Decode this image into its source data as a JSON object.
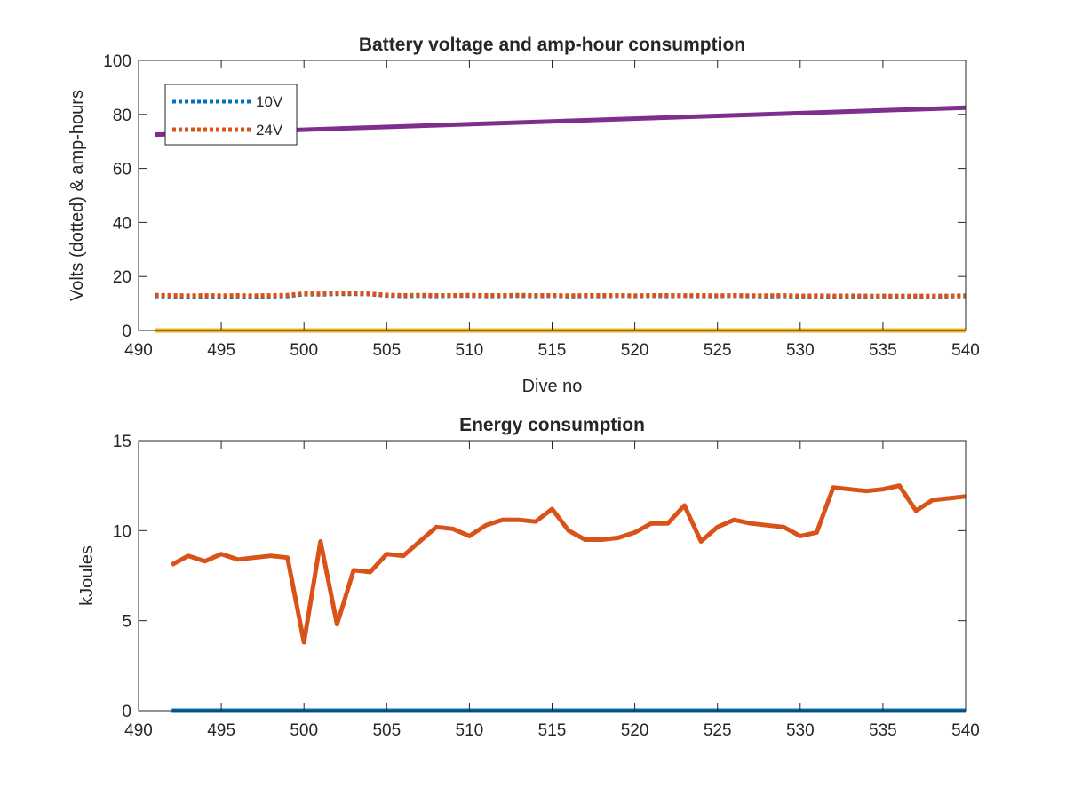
{
  "chart_data": [
    {
      "type": "line",
      "title": "Battery voltage and amp-hour consumption",
      "xlabel": "Dive no",
      "ylabel": "Volts (dotted) & amp-hours",
      "xlim": [
        490,
        540
      ],
      "ylim": [
        0,
        100
      ],
      "xticks": [
        "490",
        "495",
        "500",
        "505",
        "510",
        "515",
        "520",
        "525",
        "530",
        "535",
        "540"
      ],
      "yticks": [
        "0",
        "20",
        "40",
        "60",
        "80",
        "100"
      ],
      "legend_position": "top-left",
      "grid": false,
      "series": [
        {
          "name": "10V",
          "style": "dotted",
          "color": "#0072BD",
          "x": [
            491,
            492,
            493,
            494,
            495,
            496,
            497,
            498,
            499,
            500,
            501,
            502,
            503,
            504,
            505,
            506,
            507,
            508,
            509,
            510,
            511,
            512,
            513,
            514,
            515,
            516,
            517,
            518,
            519,
            520,
            521,
            522,
            523,
            524,
            525,
            526,
            527,
            528,
            529,
            530,
            531,
            532,
            533,
            534,
            535,
            536,
            537,
            538,
            539,
            540
          ],
          "values": [
            12.8,
            12.7,
            12.6,
            12.7,
            12.6,
            12.7,
            12.6,
            12.7,
            12.8,
            13.5,
            13.4,
            13.6,
            13.6,
            13.5,
            13.0,
            12.8,
            12.9,
            12.8,
            12.9,
            12.9,
            12.8,
            12.8,
            12.9,
            12.8,
            12.9,
            12.7,
            12.8,
            12.8,
            12.9,
            12.8,
            12.9,
            12.8,
            12.9,
            12.8,
            12.8,
            12.9,
            12.8,
            12.7,
            12.8,
            12.6,
            12.7,
            12.6,
            12.7,
            12.6,
            12.7,
            12.6,
            12.7,
            12.6,
            12.7,
            12.8
          ]
        },
        {
          "name": "24V",
          "style": "dotted",
          "color": "#D95319",
          "x": [
            491,
            492,
            493,
            494,
            495,
            496,
            497,
            498,
            499,
            500,
            501,
            502,
            503,
            504,
            505,
            506,
            507,
            508,
            509,
            510,
            511,
            512,
            513,
            514,
            515,
            516,
            517,
            518,
            519,
            520,
            521,
            522,
            523,
            524,
            525,
            526,
            527,
            528,
            529,
            530,
            531,
            532,
            533,
            534,
            535,
            536,
            537,
            538,
            539,
            540
          ],
          "values": [
            13.1,
            13.0,
            12.9,
            13.0,
            12.9,
            13.0,
            12.9,
            13.0,
            13.1,
            13.7,
            13.6,
            13.8,
            13.8,
            13.6,
            13.2,
            13.0,
            13.1,
            13.0,
            13.0,
            13.1,
            13.0,
            13.0,
            13.1,
            13.0,
            13.0,
            12.9,
            13.0,
            13.0,
            13.0,
            12.9,
            13.0,
            13.0,
            12.9,
            13.0,
            12.9,
            13.0,
            12.9,
            12.9,
            13.0,
            12.8,
            12.9,
            12.8,
            12.9,
            12.8,
            12.8,
            12.8,
            12.8,
            12.8,
            12.8,
            12.9
          ]
        },
        {
          "style": "solid",
          "color": "#7E2F8E",
          "x": [
            491,
            540
          ],
          "values": [
            72.5,
            82.5
          ]
        },
        {
          "style": "solid",
          "color": "#EDB120",
          "x": [
            491,
            540
          ],
          "values": [
            0,
            0
          ]
        }
      ]
    },
    {
      "type": "line",
      "title": "Energy consumption",
      "xlabel": "",
      "ylabel": "kJoules",
      "xlim": [
        490,
        540
      ],
      "ylim": [
        0,
        15
      ],
      "xticks": [
        "490",
        "495",
        "500",
        "505",
        "510",
        "515",
        "520",
        "525",
        "530",
        "535",
        "540"
      ],
      "yticks": [
        "0",
        "5",
        "10",
        "15"
      ],
      "grid": false,
      "series": [
        {
          "style": "solid",
          "color": "#D95319",
          "x": [
            492,
            493,
            494,
            495,
            496,
            497,
            498,
            499,
            500,
            501,
            502,
            503,
            504,
            505,
            506,
            507,
            508,
            509,
            510,
            511,
            512,
            513,
            514,
            515,
            516,
            517,
            518,
            519,
            520,
            521,
            522,
            523,
            524,
            525,
            526,
            527,
            528,
            529,
            530,
            531,
            532,
            533,
            534,
            535,
            536,
            537,
            538,
            539,
            540
          ],
          "values": [
            8.1,
            8.6,
            8.3,
            8.7,
            8.4,
            8.5,
            8.6,
            8.5,
            3.8,
            9.4,
            4.8,
            7.8,
            7.7,
            8.7,
            8.6,
            9.4,
            10.2,
            10.1,
            9.7,
            10.3,
            10.6,
            10.6,
            10.5,
            11.2,
            10.0,
            9.5,
            9.5,
            9.6,
            9.9,
            10.4,
            10.4,
            11.4,
            9.4,
            10.2,
            10.6,
            10.4,
            10.3,
            10.2,
            9.7,
            9.9,
            12.4,
            12.3,
            12.2,
            12.3,
            12.5,
            11.1,
            11.7,
            11.8,
            11.9
          ]
        },
        {
          "style": "solid",
          "color": "#0072BD",
          "x": [
            492,
            540
          ],
          "values": [
            0,
            0
          ]
        }
      ]
    }
  ]
}
